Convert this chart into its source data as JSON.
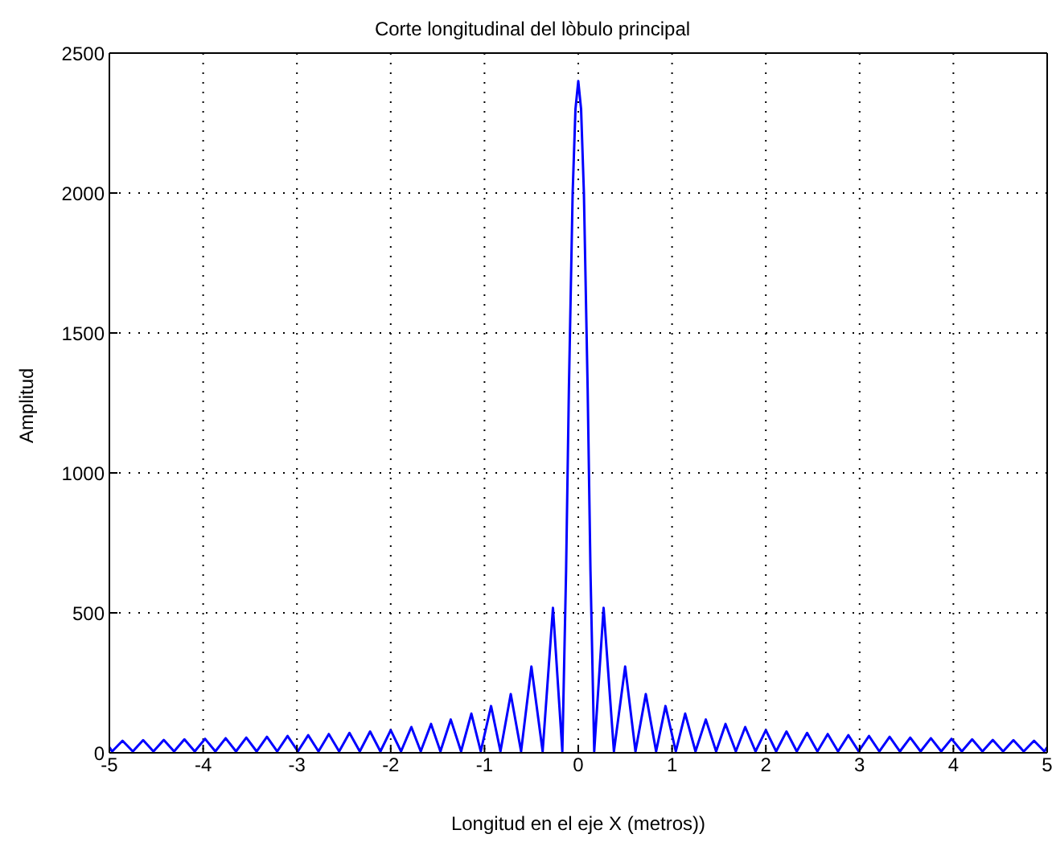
{
  "chart_data": {
    "type": "line",
    "title": "Corte longitudinal del lòbulo principal",
    "xlabel": "Longitud en el eje X (metros))",
    "ylabel": "Amplitud",
    "x": [
      -5,
      -4.97,
      -4.86,
      -4.75,
      -4.64,
      -4.53,
      -4.42,
      -4.31,
      -4.2,
      -4.09,
      -3.98,
      -3.87,
      -3.76,
      -3.65,
      -3.54,
      -3.43,
      -3.32,
      -3.21,
      -3.1,
      -2.99,
      -2.88,
      -2.77,
      -2.66,
      -2.55,
      -2.44,
      -2.33,
      -2.22,
      -2.11,
      -2.0,
      -1.89,
      -1.78,
      -1.68,
      -1.57,
      -1.47,
      -1.36,
      -1.25,
      -1.14,
      -1.04,
      -0.93,
      -0.83,
      -0.72,
      -0.61,
      -0.5,
      -0.38,
      -0.27,
      -0.17,
      -0.13,
      -0.1,
      -0.06,
      -0.03,
      0,
      0.03,
      0.06,
      0.1,
      0.13,
      0.17,
      0.27,
      0.38,
      0.5,
      0.61,
      0.72,
      0.83,
      0.93,
      1.04,
      1.14,
      1.25,
      1.36,
      1.47,
      1.57,
      1.68,
      1.78,
      1.89,
      2.0,
      2.11,
      2.22,
      2.33,
      2.44,
      2.55,
      2.66,
      2.77,
      2.88,
      2.99,
      3.1,
      3.21,
      3.32,
      3.43,
      3.54,
      3.65,
      3.76,
      3.87,
      3.98,
      4.09,
      4.2,
      4.31,
      4.42,
      4.53,
      4.64,
      4.75,
      4.86,
      4.97,
      5
    ],
    "series": [
      {
        "color": "#0000ff",
        "values": [
          20,
          5,
          43,
          5,
          45,
          5,
          46,
          5,
          48,
          5,
          50,
          5,
          52,
          5,
          54,
          5,
          57,
          5,
          60,
          5,
          63,
          5,
          67,
          5,
          71,
          5,
          76,
          5,
          81,
          5,
          92,
          5,
          103,
          5,
          119,
          5,
          140,
          5,
          167,
          5,
          210,
          5,
          308,
          5,
          518,
          5,
          650,
          1300,
          2000,
          2300,
          2400,
          2300,
          2000,
          1300,
          650,
          5,
          518,
          5,
          308,
          5,
          210,
          5,
          167,
          5,
          140,
          5,
          119,
          5,
          103,
          5,
          92,
          5,
          81,
          5,
          76,
          5,
          71,
          5,
          67,
          5,
          63,
          5,
          60,
          5,
          57,
          5,
          54,
          5,
          52,
          5,
          50,
          5,
          48,
          5,
          46,
          5,
          45,
          5,
          43,
          5,
          20
        ]
      }
    ],
    "xlim": [
      -5,
      5
    ],
    "xticks": [
      -5,
      -4,
      -3,
      -2,
      -1,
      0,
      1,
      2,
      3,
      4,
      5
    ],
    "ylim": [
      0,
      2500
    ],
    "yticks": [
      0,
      500,
      1000,
      1500,
      2000,
      2500
    ],
    "grid": true,
    "line_style": "solid",
    "marker": "none",
    "legend": false
  }
}
